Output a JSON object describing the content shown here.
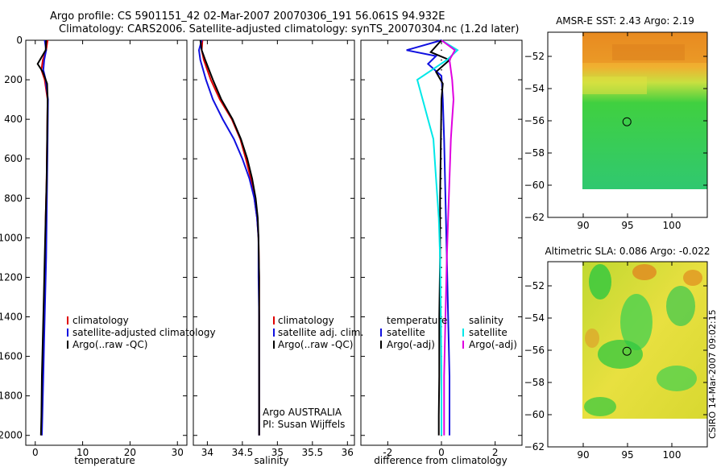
{
  "header": {
    "line1": "Argo profile: CS 5901151_42 02-Mar-2007 20070306_191 56.061S 94.932E",
    "line2": "Climatology: CARS2006. Satellite-adjusted climatology: synTS_20070304.nc (1.2d later)"
  },
  "credit": {
    "agency": "Argo AUSTRALIA",
    "pi": "PI: Susan Wijffels",
    "stamp": "CSIRO 14-Mar-2007 09:02:15"
  },
  "colors": {
    "climatology": "#e00000",
    "satellite": "#1010e0",
    "argo": "#000000",
    "salinity_satellite": "#00e8e8",
    "salinity_argo": "#e000e0"
  },
  "chart_data": [
    {
      "id": "temperature",
      "type": "line",
      "xlabel": "temperature",
      "ylabel": "",
      "xlim": [
        -2,
        32
      ],
      "ylim": [
        2050,
        0
      ],
      "xticks": [
        0,
        10,
        20,
        30
      ],
      "yticks": [
        0,
        200,
        400,
        600,
        800,
        1000,
        1200,
        1400,
        1600,
        1800,
        2000
      ],
      "legend": [
        "climatology",
        "satellite-adjusted climatology",
        "Argo(..raw -QC)"
      ],
      "series": [
        {
          "name": "climatology",
          "color": "#e00000",
          "x": [
            2.6,
            2.3,
            1.6,
            1.3,
            2.0,
            2.6,
            2.5,
            2.4,
            2.2,
            2.1,
            1.9,
            1.7,
            1.5,
            1.4,
            1.3
          ],
          "y": [
            0,
            50,
            100,
            150,
            200,
            300,
            500,
            700,
            900,
            1100,
            1300,
            1500,
            1700,
            1900,
            2000
          ]
        },
        {
          "name": "satellite-adjusted climatology",
          "color": "#1010e0",
          "x": [
            2.0,
            2.3,
            1.9,
            1.7,
            2.2,
            2.7,
            2.6,
            2.5,
            2.4,
            2.3,
            2.1,
            1.9,
            1.7,
            1.5,
            1.4
          ],
          "y": [
            0,
            50,
            100,
            150,
            200,
            300,
            500,
            700,
            900,
            1100,
            1300,
            1500,
            1700,
            1900,
            2000
          ]
        },
        {
          "name": "Argo(..raw -QC)",
          "color": "#000000",
          "x": [
            2.3,
            2.2,
            0.5,
            1.6,
            2.5,
            2.6,
            2.5,
            2.4,
            2.2,
            2.0,
            1.8,
            1.6,
            1.4,
            1.3,
            1.2
          ],
          "y": [
            0,
            50,
            120,
            160,
            220,
            300,
            500,
            700,
            900,
            1100,
            1300,
            1500,
            1700,
            1900,
            2000
          ]
        }
      ]
    },
    {
      "id": "salinity",
      "type": "line",
      "xlabel": "salinity",
      "ylabel": "",
      "xlim": [
        33.8,
        36.1
      ],
      "ylim": [
        2050,
        0
      ],
      "xticks": [
        34,
        34.5,
        35,
        35.5,
        36
      ],
      "legend": [
        "climatology",
        "satellite adj. clim.",
        "Argo(..raw -QC)"
      ],
      "series": [
        {
          "name": "climatology",
          "color": "#e00000",
          "x": [
            33.93,
            33.92,
            33.95,
            34.05,
            34.18,
            34.35,
            34.47,
            34.55,
            34.62,
            34.67,
            34.71,
            34.73,
            34.74,
            34.74,
            34.74,
            34.74,
            34.74
          ],
          "y": [
            0,
            50,
            100,
            200,
            300,
            400,
            500,
            600,
            700,
            800,
            900,
            1000,
            1200,
            1400,
            1600,
            1800,
            2000
          ]
        },
        {
          "name": "satellite adj. clim.",
          "color": "#1010e0",
          "x": [
            33.92,
            33.88,
            33.9,
            33.98,
            34.08,
            34.22,
            34.38,
            34.5,
            34.6,
            34.67,
            34.71,
            34.73,
            34.73,
            34.74,
            34.74,
            34.74,
            34.74
          ],
          "y": [
            0,
            50,
            100,
            200,
            300,
            400,
            500,
            600,
            700,
            800,
            900,
            1000,
            1200,
            1400,
            1600,
            1800,
            2000
          ]
        },
        {
          "name": "Argo(..raw -QC)",
          "color": "#000000",
          "x": [
            33.9,
            33.92,
            33.97,
            34.08,
            34.2,
            34.36,
            34.48,
            34.57,
            34.64,
            34.69,
            34.72,
            34.73,
            34.74,
            34.74,
            34.74,
            34.74,
            34.74
          ],
          "y": [
            0,
            50,
            100,
            200,
            300,
            400,
            500,
            600,
            700,
            800,
            900,
            1000,
            1200,
            1400,
            1600,
            1800,
            2000
          ]
        }
      ]
    },
    {
      "id": "difference",
      "type": "line",
      "xlabel": "difference from climatology",
      "ylabel": "",
      "xlim": [
        -3,
        3
      ],
      "ylim": [
        2050,
        0
      ],
      "xticks": [
        -2,
        0,
        2
      ],
      "legend_left_title": "temperature",
      "legend_right_title": "salinity",
      "legend": [
        "satellite",
        "Argo(-adj)",
        "satellite",
        "Argo(-adj)"
      ],
      "series": [
        {
          "name": "satellite",
          "group": "temperature",
          "color": "#1010e0",
          "x": [
            0.0,
            -1.3,
            -0.2,
            -0.5,
            0.0,
            0.05,
            0.1,
            0.15,
            0.2,
            0.25,
            0.3,
            0.3,
            0.3
          ],
          "y": [
            0,
            50,
            80,
            120,
            180,
            300,
            500,
            800,
            1100,
            1400,
            1700,
            1900,
            2000
          ]
        },
        {
          "name": "Argo(-adj)",
          "group": "temperature",
          "color": "#000000",
          "x": [
            0.0,
            -0.4,
            0.3,
            -0.2,
            0.05,
            0.0,
            -0.02,
            -0.05,
            -0.05,
            -0.08,
            -0.08,
            -0.1,
            -0.1
          ],
          "y": [
            0,
            60,
            100,
            160,
            220,
            300,
            500,
            800,
            1100,
            1400,
            1700,
            1900,
            2000
          ]
        },
        {
          "name": "satellite",
          "group": "salinity",
          "color": "#00e8e8",
          "x": [
            0.0,
            0.6,
            0.2,
            -0.9,
            -0.7,
            -0.5,
            -0.3,
            -0.2,
            -0.1,
            -0.05,
            -0.02,
            0.0,
            0.0
          ],
          "y": [
            0,
            50,
            100,
            200,
            300,
            400,
            500,
            700,
            900,
            1100,
            1400,
            1700,
            2000
          ]
        },
        {
          "name": "Argo(-adj)",
          "group": "salinity",
          "color": "#e000e0",
          "x": [
            0.0,
            0.5,
            0.3,
            0.4,
            0.45,
            0.4,
            0.35,
            0.3,
            0.25,
            0.2,
            0.15,
            0.1,
            0.1
          ],
          "y": [
            0,
            50,
            100,
            200,
            300,
            400,
            500,
            700,
            900,
            1100,
            1400,
            1700,
            2000
          ]
        }
      ]
    },
    {
      "id": "sst_map",
      "type": "heatmap",
      "title": "AMSR-E SST: 2.43 Argo: 2.19",
      "xlim": [
        86,
        104
      ],
      "ylim": [
        -62,
        -50.5
      ],
      "xticks": [
        90,
        95,
        100
      ],
      "yticks": [
        -52,
        -54,
        -56,
        -58,
        -60,
        -62
      ],
      "data_extent": {
        "lon": [
          90,
          104
        ],
        "lat": [
          -60,
          -50.5
        ]
      },
      "float_position": {
        "lon": 94.932,
        "lat": -56.061
      }
    },
    {
      "id": "sla_map",
      "type": "heatmap",
      "title": "Altimetric SLA: 0.086 Argo: -0.022",
      "xlim": [
        86,
        104
      ],
      "ylim": [
        -62,
        -50.5
      ],
      "xticks": [
        90,
        95,
        100
      ],
      "yticks": [
        -52,
        -54,
        -56,
        -58,
        -60,
        -62
      ],
      "data_extent": {
        "lon": [
          90,
          104
        ],
        "lat": [
          -60,
          -50.5
        ]
      },
      "float_position": {
        "lon": 94.932,
        "lat": -56.061
      }
    }
  ]
}
